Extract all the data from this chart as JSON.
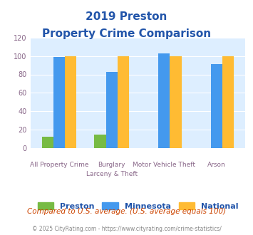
{
  "title_line1": "2019 Preston",
  "title_line2": "Property Crime Comparison",
  "category_labels_top": [
    "",
    "Burglary",
    "Motor Vehicle Theft",
    ""
  ],
  "category_labels_bot": [
    "All Property Crime",
    "Larceny & Theft",
    "",
    "Arson"
  ],
  "series": {
    "Preston": [
      12,
      15,
      0,
      0
    ],
    "Minnesota": [
      99,
      83,
      103,
      91
    ],
    "National": [
      100,
      100,
      100,
      100
    ]
  },
  "colors": {
    "Preston": "#77bb44",
    "Minnesota": "#4499ee",
    "National": "#ffbb33"
  },
  "ylim": [
    0,
    120
  ],
  "yticks": [
    0,
    20,
    40,
    60,
    80,
    100,
    120
  ],
  "plot_bg": "#ddeeff",
  "title_color": "#2255aa",
  "axis_label_color": "#886688",
  "legend_label_color": "#2255aa",
  "footer_text": "Compared to U.S. average. (U.S. average equals 100)",
  "footer_color": "#cc4400",
  "copyright_text": "© 2025 CityRating.com - https://www.cityrating.com/crime-statistics/",
  "copyright_color": "#888888"
}
